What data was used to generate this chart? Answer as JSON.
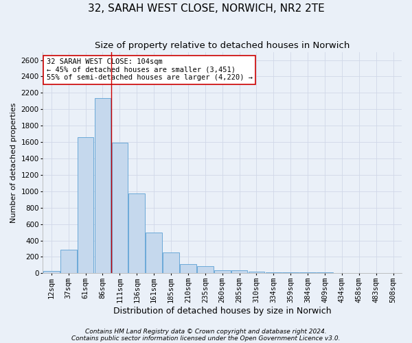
{
  "title": "32, SARAH WEST CLOSE, NORWICH, NR2 2TE",
  "subtitle": "Size of property relative to detached houses in Norwich",
  "xlabel": "Distribution of detached houses by size in Norwich",
  "ylabel": "Number of detached properties",
  "categories": [
    "12sqm",
    "37sqm",
    "61sqm",
    "86sqm",
    "111sqm",
    "136sqm",
    "161sqm",
    "185sqm",
    "210sqm",
    "235sqm",
    "260sqm",
    "285sqm",
    "310sqm",
    "334sqm",
    "359sqm",
    "384sqm",
    "409sqm",
    "434sqm",
    "458sqm",
    "483sqm",
    "508sqm"
  ],
  "values": [
    30,
    290,
    1660,
    2140,
    1590,
    970,
    500,
    250,
    110,
    90,
    40,
    40,
    20,
    15,
    10,
    8,
    8,
    5,
    5,
    3,
    3
  ],
  "bar_color": "#c5d8ed",
  "bar_edge_color": "#5a9fd4",
  "grid_color": "#d0d8e8",
  "background_color": "#eaf0f8",
  "vline_x": 3.5,
  "vline_color": "#cc0000",
  "annotation_text": "32 SARAH WEST CLOSE: 104sqm\n← 45% of detached houses are smaller (3,451)\n55% of semi-detached houses are larger (4,220) →",
  "annotation_box_color": "#ffffff",
  "annotation_box_edge_color": "#cc0000",
  "footnote1": "Contains HM Land Registry data © Crown copyright and database right 2024.",
  "footnote2": "Contains public sector information licensed under the Open Government Licence v3.0.",
  "ylim": [
    0,
    2700
  ],
  "yticks": [
    0,
    200,
    400,
    600,
    800,
    1000,
    1200,
    1400,
    1600,
    1800,
    2000,
    2200,
    2400,
    2600
  ],
  "title_fontsize": 11,
  "subtitle_fontsize": 9.5,
  "xlabel_fontsize": 9,
  "ylabel_fontsize": 8,
  "tick_fontsize": 7.5,
  "annot_fontsize": 7.5,
  "footnote_fontsize": 6.5
}
